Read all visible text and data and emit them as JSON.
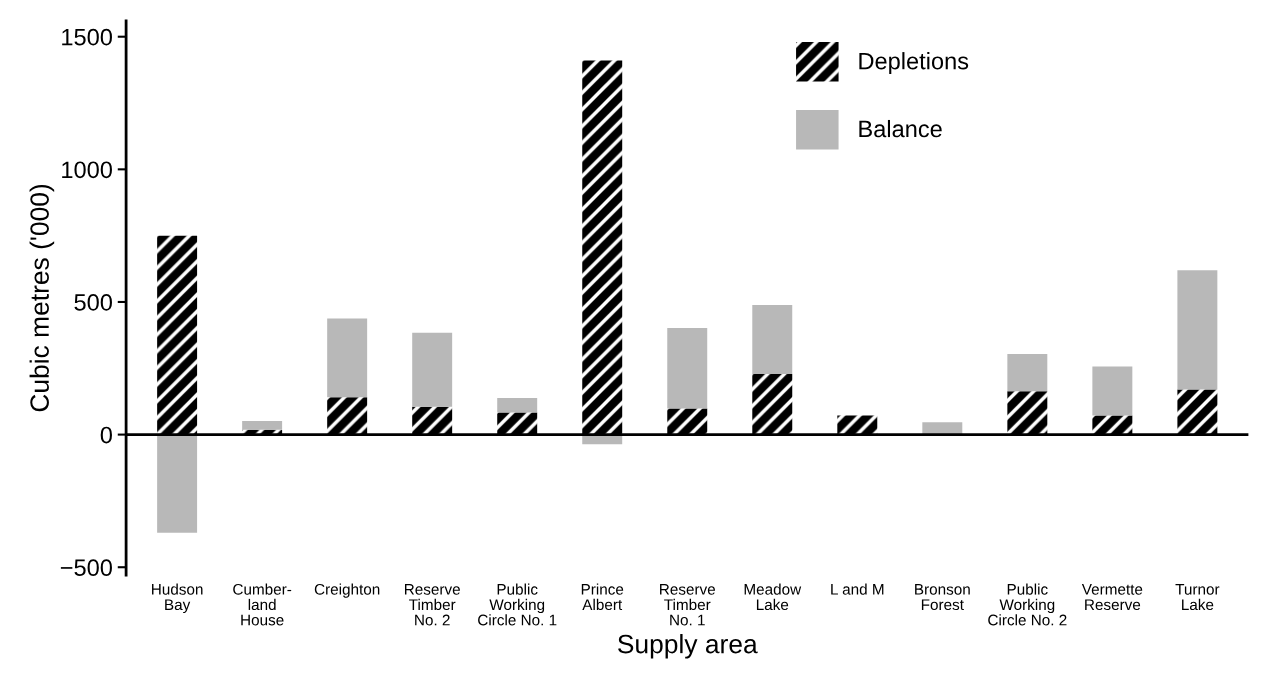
{
  "chart_data": {
    "type": "bar",
    "stacked": true,
    "xlabel": "Supply area",
    "ylabel": "Cubic metres ('000)",
    "categories": [
      "Hudson\nBay",
      "Cumber-\nland\nHouse",
      "Creighton",
      "Reserve\nTimber\nNo. 2",
      "Public\nWorking\nCircle No. 1",
      "Prince\nAlbert",
      "Reserve\nTimber\nNo. 1",
      "Meadow\nLake",
      "L and M",
      "Bronson\nForest",
      "Public\nWorking\nCircle No. 2",
      "Vermette\nReserve",
      "Turnor\nLake"
    ],
    "series": [
      {
        "name": "Depletions",
        "color": "#000000",
        "values": [
          750,
          18,
          141,
          105,
          83,
          1410,
          98,
          228,
          72,
          0,
          163,
          72,
          170
        ]
      },
      {
        "name": "Balance",
        "color": "#b8b8b8",
        "values": [
          -370,
          33,
          297,
          279,
          55,
          -36,
          304,
          261,
          0,
          47,
          141,
          185,
          450
        ]
      }
    ],
    "ylim": [
      -530,
      1560
    ],
    "yticks": [
      {
        "value": -500,
        "label": "−500"
      },
      0,
      500,
      1000,
      1500
    ],
    "ref_lines": [
      {
        "axis": "y",
        "value": 0
      }
    ],
    "legend": "top right",
    "grid": false
  }
}
